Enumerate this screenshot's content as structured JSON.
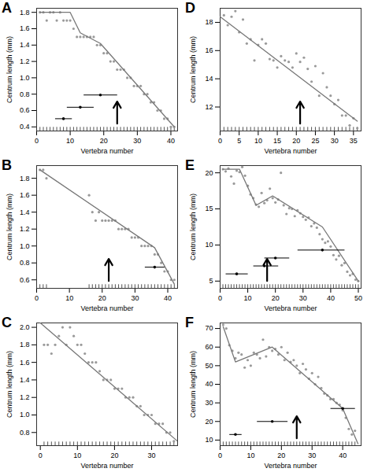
{
  "chart_data": [
    {
      "type": "scatter",
      "title": "A",
      "x_label": "Vertebra number",
      "y_label": "Centrum length (mm)",
      "color": "#9a9a9a",
      "line_color": "#777777",
      "breakpoint_color": "#000000",
      "xlim": [
        0,
        42
      ],
      "xticks": [
        0,
        10,
        20,
        30,
        40
      ],
      "ylim": [
        0.35,
        1.85
      ],
      "yticks": [
        0.4,
        0.6,
        0.8,
        1.0,
        1.2,
        1.4,
        1.6,
        1.8
      ],
      "x": [
        1,
        2,
        3,
        4,
        5,
        6,
        7,
        8,
        9,
        10,
        11,
        12,
        13,
        14,
        15,
        16,
        17,
        18,
        19,
        20,
        21,
        22,
        23,
        24,
        25,
        26,
        27,
        28,
        29,
        30,
        31,
        32,
        33,
        34,
        35,
        36,
        37,
        38,
        39,
        40,
        41
      ],
      "values": [
        1.8,
        1.8,
        1.7,
        1.8,
        1.8,
        1.7,
        1.8,
        1.7,
        1.7,
        1.7,
        1.6,
        1.5,
        1.5,
        1.5,
        1.5,
        1.5,
        1.5,
        1.4,
        1.4,
        1.3,
        1.3,
        1.2,
        1.2,
        1.1,
        1.1,
        1.1,
        1.0,
        1.0,
        0.9,
        0.9,
        0.9,
        0.8,
        0.8,
        0.7,
        0.7,
        0.6,
        0.6,
        0.5,
        0.5,
        0.4,
        0.4
      ],
      "fit": {
        "x": [
          1,
          10,
          13,
          19,
          41
        ],
        "y": [
          1.8,
          1.8,
          1.55,
          1.42,
          0.4
        ]
      },
      "breakpoints": {
        "x": [
          8,
          13,
          19
        ],
        "y": [
          0.5,
          0.64,
          0.79
        ],
        "x_low": [
          5.5,
          9,
          14
        ],
        "x_high": [
          10.5,
          17,
          24
        ]
      },
      "arrow_x": 24
    },
    {
      "type": "scatter",
      "title": "D",
      "x_label": "Vertebra number",
      "y_label": "Centrum length (mm)",
      "color": "#9a9a9a",
      "line_color": "#777777",
      "breakpoint_color": "#000000",
      "xlim": [
        0,
        37
      ],
      "xticks": [
        0,
        5,
        10,
        15,
        20,
        25,
        30,
        35
      ],
      "ylim": [
        10.3,
        19
      ],
      "yticks": [
        12,
        14,
        16,
        18
      ],
      "x": [
        1,
        2,
        3,
        4,
        5,
        6,
        7,
        8,
        9,
        10,
        11,
        12,
        13,
        14,
        15,
        16,
        17,
        18,
        19,
        20,
        21,
        22,
        23,
        24,
        25,
        26,
        27,
        28,
        29,
        30,
        31,
        32,
        33,
        34,
        35,
        36
      ],
      "values": [
        18.5,
        17.8,
        18.4,
        18.8,
        17.3,
        18.2,
        16.5,
        16.8,
        15.3,
        16.4,
        16.8,
        16.5,
        15.4,
        15.3,
        14.8,
        15.6,
        15.3,
        15.2,
        14.8,
        15.8,
        15.2,
        15.5,
        14.7,
        13.8,
        14.9,
        12.8,
        14.4,
        13.4,
        12.8,
        12.2,
        12.5,
        11.4,
        11.4,
        10.7,
        11.2,
        10.5
      ],
      "fit": {
        "x": [
          0,
          36
        ],
        "y": [
          18.4,
          11.0
        ]
      },
      "breakpoints": {
        "x": [],
        "y": [],
        "x_low": [],
        "x_high": []
      },
      "arrow_x": 21
    },
    {
      "type": "scatter",
      "title": "B",
      "x_label": "Vertebra number",
      "y_label": "Centrum length (mm)",
      "color": "#9a9a9a",
      "line_color": "#777777",
      "breakpoint_color": "#000000",
      "xlim": [
        0,
        43
      ],
      "xticks": [
        0,
        10,
        20,
        30,
        40
      ],
      "ylim": [
        0.5,
        1.95
      ],
      "yticks": [
        0.6,
        0.8,
        1.0,
        1.2,
        1.4,
        1.6,
        1.8
      ],
      "x": [
        1,
        2,
        3,
        16,
        17,
        18,
        19,
        20,
        21,
        22,
        23,
        24,
        25,
        26,
        27,
        28,
        29,
        30,
        31,
        32,
        33,
        34,
        35,
        36,
        37,
        38,
        39,
        40,
        41,
        42
      ],
      "values": [
        1.9,
        1.9,
        1.8,
        1.6,
        1.4,
        1.3,
        1.4,
        1.3,
        1.3,
        1.3,
        1.3,
        1.3,
        1.2,
        1.2,
        1.2,
        1.2,
        1.1,
        1.1,
        1.1,
        1.0,
        1.0,
        1.0,
        1.0,
        0.9,
        0.9,
        0.8,
        0.7,
        0.7,
        0.6,
        0.6
      ],
      "fit": {
        "x": [
          1,
          36,
          42
        ],
        "y": [
          1.9,
          0.98,
          0.55
        ]
      },
      "breakpoints": {
        "x": [
          36
        ],
        "y": [
          0.75
        ],
        "x_low": [
          33
        ],
        "x_high": [
          39
        ]
      },
      "arrow_x": 22
    },
    {
      "type": "scatter",
      "title": "E",
      "x_label": "Vertebra number",
      "y_label": "Centrum length (mm)",
      "color": "#9a9a9a",
      "line_color": "#777777",
      "breakpoint_color": "#000000",
      "xlim": [
        0,
        51
      ],
      "xticks": [
        0,
        10,
        20,
        30,
        40,
        50
      ],
      "ylim": [
        4,
        21
      ],
      "yticks": [
        5,
        10,
        15,
        20
      ],
      "x": [
        1,
        2,
        3,
        4,
        5,
        6,
        7,
        8,
        9,
        10,
        11,
        12,
        13,
        14,
        15,
        16,
        17,
        18,
        19,
        20,
        21,
        22,
        23,
        24,
        25,
        26,
        27,
        28,
        29,
        30,
        31,
        32,
        33,
        34,
        35,
        36,
        37,
        38,
        39,
        40,
        41,
        42,
        43,
        44,
        45,
        46,
        47,
        48,
        49,
        50
      ],
      "values": [
        20.5,
        20.2,
        20.6,
        19.5,
        18.5,
        20.3,
        20.1,
        20.8,
        19.6,
        18.2,
        17.0,
        16.5,
        15.6,
        15.3,
        17.2,
        15.8,
        16.2,
        17.8,
        16.5,
        15.9,
        16.3,
        20.0,
        15.5,
        14.3,
        15.1,
        15.0,
        14.0,
        14.8,
        14.4,
        13.9,
        13.5,
        13.8,
        12.6,
        13.0,
        12.4,
        11.5,
        10.8,
        10.3,
        10.5,
        9.8,
        8.6,
        8.0,
        8.5,
        7.2,
        7.5,
        6.3,
        5.8,
        6.0,
        5.2,
        5.0
      ],
      "fit": {
        "x": [
          1,
          7,
          13,
          19,
          37,
          50
        ],
        "y": [
          20.5,
          20.5,
          15.5,
          16.8,
          12.5,
          5.0
        ]
      },
      "breakpoints": {
        "x": [
          6,
          16,
          20,
          37
        ],
        "y": [
          6.0,
          7.1,
          8.2,
          9.3
        ],
        "x_low": [
          2,
          12,
          16,
          28
        ],
        "x_high": [
          10,
          21,
          25,
          45
        ]
      },
      "arrow_x": 17
    },
    {
      "type": "scatter",
      "title": "C",
      "x_label": "Vertebra number",
      "y_label": "Centrum length (mm)",
      "color": "#9a9a9a",
      "line_color": "#777777",
      "breakpoint_color": "#000000",
      "xlim": [
        -1,
        37
      ],
      "xticks": [
        0,
        10,
        20,
        30
      ],
      "ylim": [
        0.65,
        2.05
      ],
      "yticks": [
        0.8,
        1.0,
        1.2,
        1.4,
        1.6,
        1.8,
        2.0
      ],
      "x": [
        1,
        2,
        3,
        4,
        5,
        6,
        7,
        8,
        9,
        10,
        11,
        12,
        13,
        14,
        15,
        16,
        17,
        18,
        19,
        20,
        21,
        22,
        23,
        24,
        25,
        26,
        27,
        28,
        29,
        30,
        31,
        32,
        33,
        34,
        35,
        36
      ],
      "values": [
        1.8,
        1.8,
        1.7,
        1.8,
        1.9,
        2.0,
        1.8,
        2.0,
        1.9,
        1.8,
        1.8,
        1.7,
        1.6,
        1.6,
        1.6,
        1.5,
        1.4,
        1.4,
        1.4,
        1.3,
        1.3,
        1.3,
        1.2,
        1.2,
        1.2,
        1.1,
        1.1,
        1.0,
        1.0,
        1.0,
        0.9,
        0.9,
        0.9,
        0.8,
        0.8,
        0.7
      ],
      "fit": {
        "x": [
          0,
          37
        ],
        "y": [
          2.05,
          0.7
        ]
      },
      "breakpoints": {
        "x": [],
        "y": [],
        "x_low": [],
        "x_high": []
      },
      "arrow_x": null
    },
    {
      "type": "scatter",
      "title": "F",
      "x_label": "Vertebra number",
      "y_label": "Centrum length (mm)",
      "color": "#9a9a9a",
      "line_color": "#777777",
      "breakpoint_color": "#000000",
      "xlim": [
        0,
        46
      ],
      "xticks": [
        0,
        10,
        20,
        30,
        40
      ],
      "ylim": [
        7,
        73
      ],
      "yticks": [
        10,
        20,
        30,
        40,
        50,
        60,
        70
      ],
      "x": [
        1,
        2,
        3,
        4,
        5,
        6,
        7,
        8,
        9,
        10,
        11,
        12,
        13,
        14,
        15,
        16,
        17,
        18,
        19,
        20,
        21,
        22,
        23,
        24,
        25,
        26,
        27,
        28,
        29,
        30,
        31,
        32,
        33,
        34,
        35,
        36,
        37,
        38,
        39,
        40,
        41,
        42,
        43,
        44
      ],
      "values": [
        72,
        70,
        61,
        58,
        54,
        57,
        56,
        49,
        53,
        50,
        57,
        56,
        54,
        64,
        55,
        60,
        58,
        59,
        56,
        60,
        53,
        57,
        52,
        53,
        50,
        46,
        51,
        48,
        43,
        46,
        40,
        44,
        38,
        35,
        34,
        32,
        32,
        30,
        29,
        26,
        22,
        16,
        13,
        15
      ],
      "fit": {
        "x": [
          1,
          5,
          17,
          40,
          45
        ],
        "y": [
          71,
          52,
          60,
          27,
          8
        ]
      },
      "breakpoints": {
        "x": [
          5,
          17,
          40
        ],
        "y": [
          13,
          20,
          27
        ],
        "x_low": [
          3,
          12,
          36
        ],
        "x_high": [
          7,
          22,
          44
        ]
      },
      "arrow_x": 25
    }
  ]
}
